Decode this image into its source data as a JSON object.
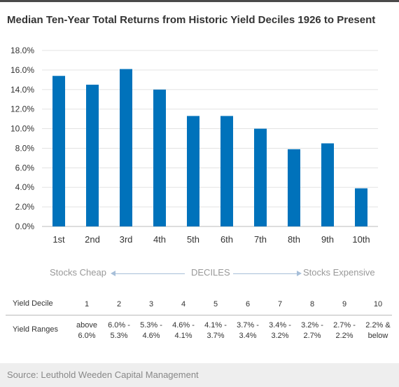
{
  "chart_data": {
    "type": "bar",
    "title": "Median Ten-Year Total Returns from Historic Yield Deciles 1926 to Present",
    "categories": [
      "1st",
      "2nd",
      "3rd",
      "4th",
      "5th",
      "6th",
      "7th",
      "8th",
      "9th",
      "10th"
    ],
    "values": [
      15.4,
      14.5,
      16.1,
      14.0,
      11.3,
      11.3,
      10.0,
      7.9,
      8.5,
      3.9
    ],
    "y_unit": "%",
    "ylim": [
      0,
      18
    ],
    "yticks": [
      "0.0%",
      "2.0%",
      "4.0%",
      "6.0%",
      "8.0%",
      "10.0%",
      "12.0%",
      "14.0%",
      "16.0%",
      "18.0%"
    ],
    "grid": true,
    "bar_color": "#0072bb"
  },
  "axis_annotation": {
    "left": "Stocks Cheap",
    "center": "DECILES",
    "right": "Stocks Expensive"
  },
  "table": {
    "decile_label": "Yield Decile",
    "deciles": [
      "1",
      "2",
      "3",
      "4",
      "5",
      "6",
      "7",
      "8",
      "9",
      "10"
    ],
    "ranges_label": "Yield Ranges",
    "ranges": [
      [
        "above",
        "6.0%"
      ],
      [
        "6.0% -",
        "5.3%"
      ],
      [
        "5.3% -",
        "4.6%"
      ],
      [
        "4.6% -",
        "4.1%"
      ],
      [
        "4.1% -",
        "3.7%"
      ],
      [
        "3.7% -",
        "3.4%"
      ],
      [
        "3.4% -",
        "3.2%"
      ],
      [
        "3.2% -",
        "2.7%"
      ],
      [
        "2.7% -",
        "2.2%"
      ],
      [
        "2.2% &",
        "below"
      ]
    ]
  },
  "source": "Source: Leuthold Weeden Capital Management"
}
